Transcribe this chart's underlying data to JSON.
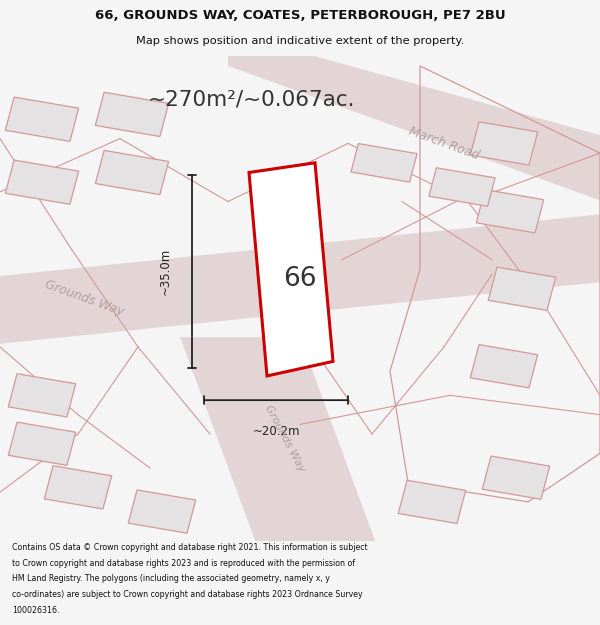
{
  "title_line1": "66, GROUNDS WAY, COATES, PETERBOROUGH, PE7 2BU",
  "title_line2": "Map shows position and indicative extent of the property.",
  "area_text": "~270m²/~0.067ac.",
  "label_66": "66",
  "dim_width": "~20.2m",
  "dim_height": "~35.0m",
  "road_label_march": "March Road",
  "road_label_gw1": "Grounds Way",
  "road_label_gw2": "Grounds Way",
  "footer_lines": [
    "Contains OS data © Crown copyright and database right 2021. This information is subject",
    "to Crown copyright and database rights 2023 and is reproduced with the permission of",
    "HM Land Registry. The polygons (including the associated geometry, namely x, y",
    "co-ordinates) are subject to Crown copyright and database rights 2023 Ordnance Survey",
    "100026316."
  ],
  "bg_color": "#f5f5f5",
  "map_bg_color": "#eeecec",
  "plot_fill": "#ffffff",
  "plot_outline_color": "#cc0000",
  "bldg_fill": "#e4e2e2",
  "bldg_ec": "#d49898",
  "parcel_ec": "#d49898",
  "road_fill": "#e0d0d0",
  "dim_color": "#222222",
  "label_color": "#333333",
  "road_text_color": "#b0a0a0",
  "title_color": "#111111",
  "footer_color": "#111111"
}
